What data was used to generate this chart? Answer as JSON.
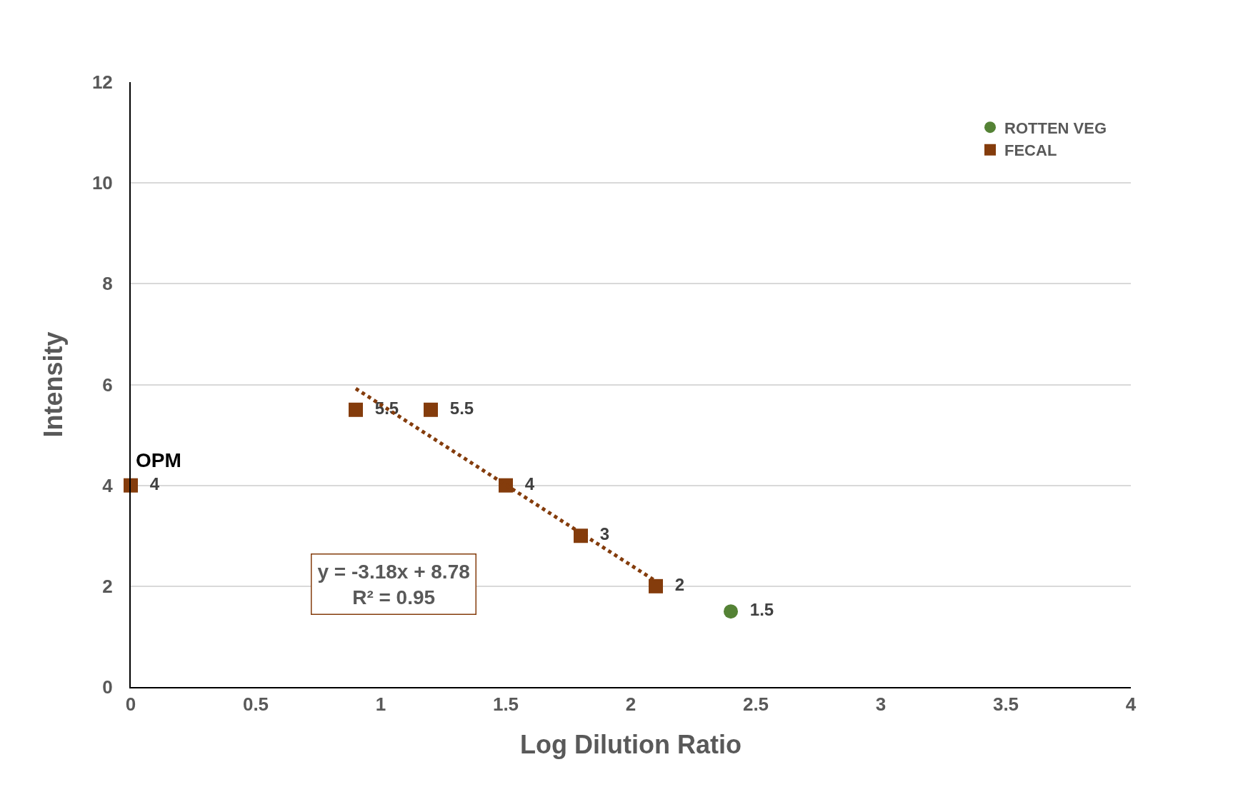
{
  "chart_data": {
    "type": "scatter",
    "xlabel": "Log Dilution Ratio",
    "ylabel": "Intensity",
    "xlim": [
      0,
      4
    ],
    "xticks": [
      0,
      0.5,
      1,
      1.5,
      2,
      2.5,
      3,
      3.5,
      4
    ],
    "ylim": [
      0,
      12
    ],
    "yticks": [
      0,
      2,
      4,
      6,
      8,
      10,
      12
    ],
    "grid": "y",
    "legend": "top right",
    "series": [
      {
        "name": "ROTTEN VEG",
        "color": "#548235",
        "marker": "circle",
        "x": [
          2.4
        ],
        "values": [
          1.5
        ],
        "value_labels": [
          "1.5"
        ]
      },
      {
        "name": "FECAL",
        "color": "#843c0c",
        "marker": "square",
        "x": [
          0,
          0.9,
          1.2,
          1.5,
          1.8,
          2.1
        ],
        "values": [
          4,
          5.5,
          5.5,
          4,
          3,
          2
        ],
        "value_labels": [
          "4",
          "5.5",
          "5.5",
          "4",
          "3",
          "2"
        ]
      },
      {
        "type": "line",
        "color": "#843c0c",
        "line_style": "dotted",
        "marker": "none",
        "x": [
          0.9,
          2.1
        ],
        "values": [
          5.92,
          2.1
        ]
      }
    ],
    "annotations": [
      {
        "text": "OPM",
        "x": 0,
        "y": 4
      },
      "y = -3.18x + 8.78\nR² = 0.95"
    ]
  }
}
